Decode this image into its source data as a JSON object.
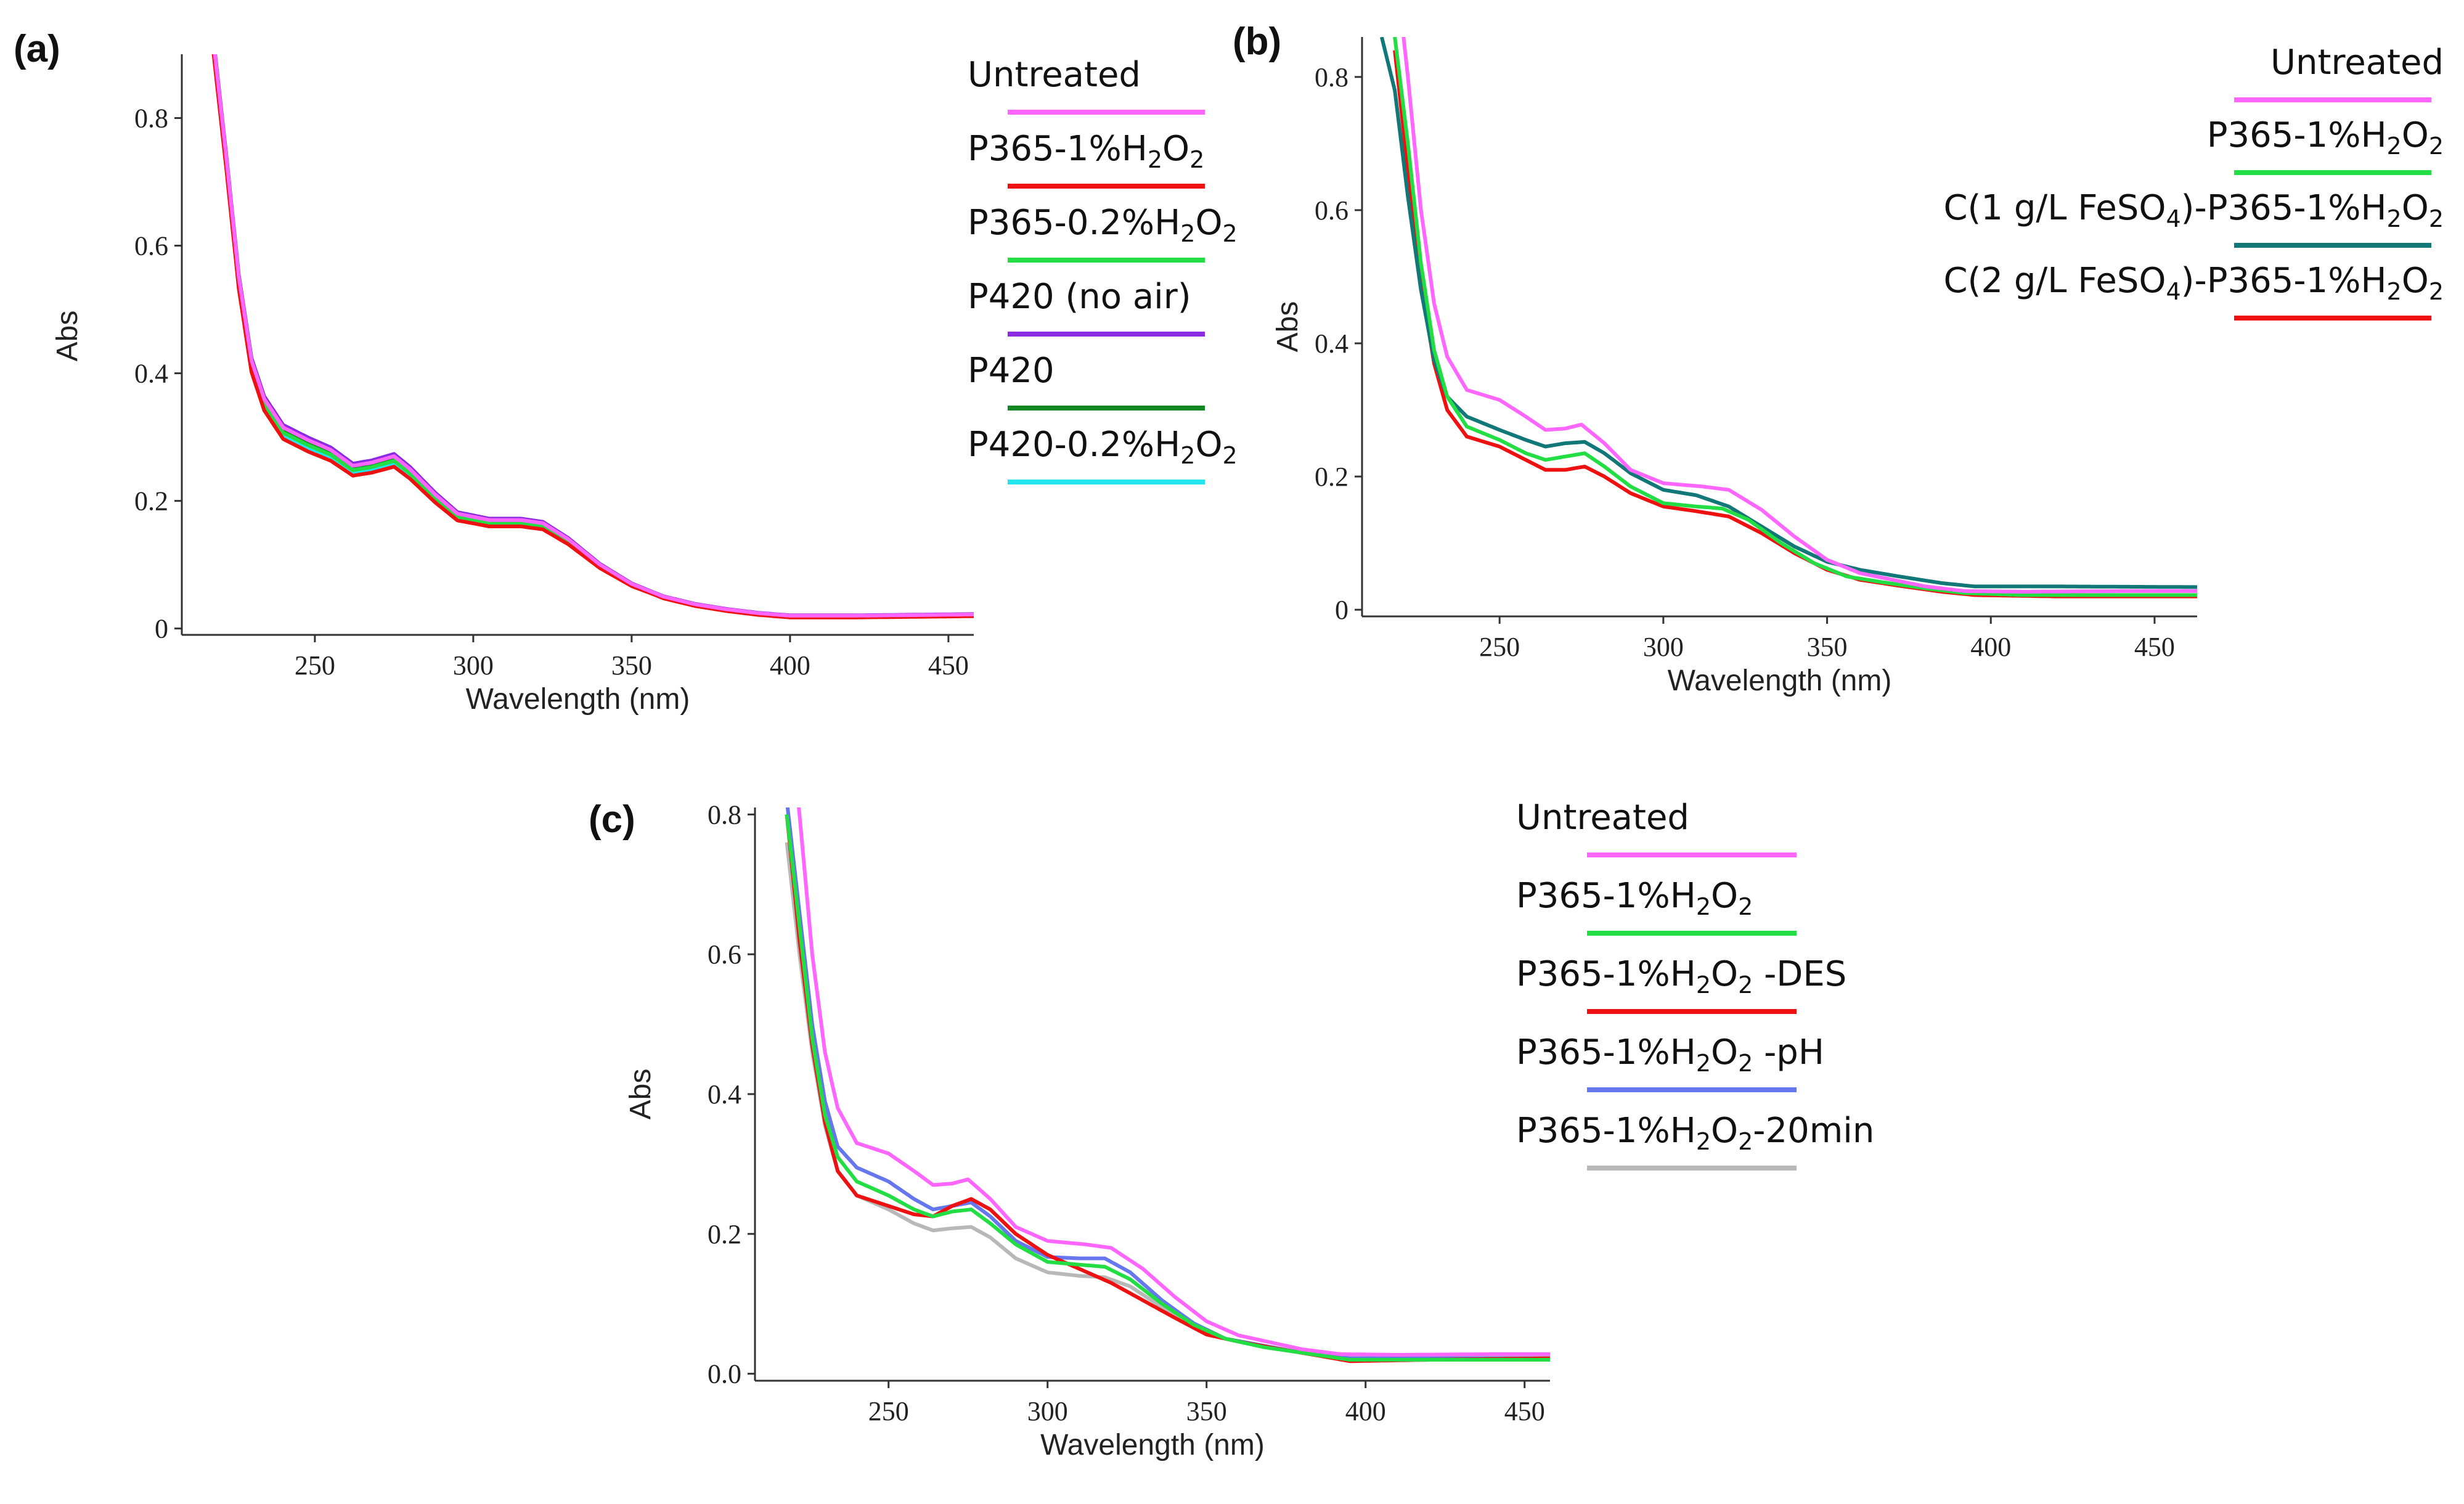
{
  "chart_data": [
    {
      "panel": "(a)",
      "type": "line",
      "xlabel": "Wavelength (nm)",
      "ylabel": "Abs",
      "xlim": [
        208,
        458
      ],
      "ylim": [
        -0.01,
        0.9
      ],
      "xticks": [
        250,
        300,
        350,
        400,
        450
      ],
      "yticks": [
        0,
        0.2,
        0.4,
        0.6,
        0.8
      ],
      "ytick_labels": [
        "0",
        "0.2",
        "0.4",
        "0.6",
        "0.8"
      ],
      "legend_position": "right",
      "series": [
        {
          "name": "Untreated",
          "label": {
            "main": "Untreated"
          },
          "color": "#ff66ff",
          "bundle": "a",
          "delta": 0.0
        },
        {
          "name": "P365-1%H2O2",
          "label": {
            "main": "P365-1%H",
            "sub1": "2",
            "mid": "O",
            "sub2": "2"
          },
          "color": "#ee1111",
          "bundle": "a",
          "delta": -0.018
        },
        {
          "name": "P365-0.2%H2O2",
          "label": {
            "main": "P365-0.2%H",
            "sub1": "2",
            "mid": "O",
            "sub2": "2"
          },
          "color": "#22dd44",
          "bundle": "a",
          "delta": -0.008
        },
        {
          "name": "P420 (no air)",
          "label": {
            "main": "P420 (no air)"
          },
          "color": "#8a2be2",
          "bundle": "a",
          "delta": 0.004
        },
        {
          "name": "P420",
          "label": {
            "main": "P420"
          },
          "color": "#118822",
          "bundle": "a",
          "delta": -0.004
        },
        {
          "name": "P420-0.2%H2O2",
          "label": {
            "main": "P420-0.2%H",
            "sub1": "2",
            "mid": "O",
            "sub2": "2"
          },
          "color": "#22e5ee",
          "bundle": "a",
          "delta": -0.012
        }
      ]
    },
    {
      "panel": "(b)",
      "type": "line",
      "xlabel": "Wavelength (nm)",
      "ylabel": "Abs",
      "xlim": [
        208,
        463
      ],
      "ylim": [
        -0.01,
        0.86
      ],
      "xticks": [
        250,
        300,
        350,
        400,
        450
      ],
      "yticks": [
        0,
        0.2,
        0.4,
        0.6,
        0.8
      ],
      "ytick_labels": [
        "0",
        "0.2",
        "0.4",
        "0.6",
        "0.8"
      ],
      "legend_position": "right",
      "series": [
        {
          "name": "Untreated",
          "label": {
            "main": "Untreated"
          },
          "color": "#ff66ff",
          "bundle": "untreated",
          "delta": 0.0
        },
        {
          "name": "P365-1%H2O2",
          "label": {
            "main": "P365-1%H",
            "sub1": "2",
            "mid": "O",
            "sub2": "2"
          },
          "color": "#22dd44",
          "bundle": "green",
          "delta": 0.0
        },
        {
          "name": "C(1 g/L FeSO4)-P365-1%H2O2",
          "label": {
            "main": "C(1 g/L FeSO",
            "sub1": "4",
            "mid": ")-P365-1%H",
            "sub2": "2",
            "mid2": "O",
            "sub3": "2"
          },
          "color": "#117777",
          "bundle": "teal",
          "delta": 0.0
        },
        {
          "name": "C(2 g/L FeSO4)-P365-1%H2O2",
          "label": {
            "main": "C(2 g/L FeSO",
            "sub1": "4",
            "mid": ")-P365-1%H",
            "sub2": "2",
            "mid2": "O",
            "sub3": "2"
          },
          "color": "#ee1111",
          "bundle": "red",
          "delta": 0.0
        }
      ]
    },
    {
      "panel": "(c)",
      "type": "line",
      "xlabel": "Wavelength (nm)",
      "ylabel": "Abs",
      "xlim": [
        208,
        458
      ],
      "ylim": [
        -0.01,
        0.81
      ],
      "xticks": [
        250,
        300,
        350,
        400,
        450
      ],
      "yticks": [
        0,
        0.2,
        0.4,
        0.6,
        0.8
      ],
      "ytick_labels": [
        "0.0",
        "0.2",
        "0.4",
        "0.6",
        "0.8"
      ],
      "legend_position": "right",
      "series": [
        {
          "name": "Untreated",
          "label": {
            "main": "Untreated"
          },
          "color": "#ff66ff",
          "bundle": "untreated",
          "delta": 0.0
        },
        {
          "name": "P365-1%H2O2",
          "label": {
            "main": "P365-1%H",
            "sub1": "2",
            "mid": "O",
            "sub2": "2"
          },
          "color": "#22dd44",
          "bundle": "c-green",
          "delta": 0.0
        },
        {
          "name": "P365-1%H2O2-DES",
          "label": {
            "main": "P365-1%H",
            "sub1": "2",
            "mid": "O",
            "sub2": "2",
            "tail": " -DES"
          },
          "color": "#ee1111",
          "bundle": "c-red",
          "delta": 0.0
        },
        {
          "name": "P365-1%H2O2-pH",
          "label": {
            "main": "P365-1%H",
            "sub1": "2",
            "mid": "O",
            "sub2": "2",
            "tail": " -pH"
          },
          "color": "#6677ee",
          "bundle": "c-blue",
          "delta": 0.0
        },
        {
          "name": "P365-1%H2O2-20min",
          "label": {
            "main": "P365-1%H",
            "sub1": "2",
            "mid": "O",
            "sub2": "2",
            "tail": "-20min"
          },
          "color": "#b8b8b8",
          "bundle": "c-gray",
          "delta": 0.0
        }
      ]
    }
  ]
}
